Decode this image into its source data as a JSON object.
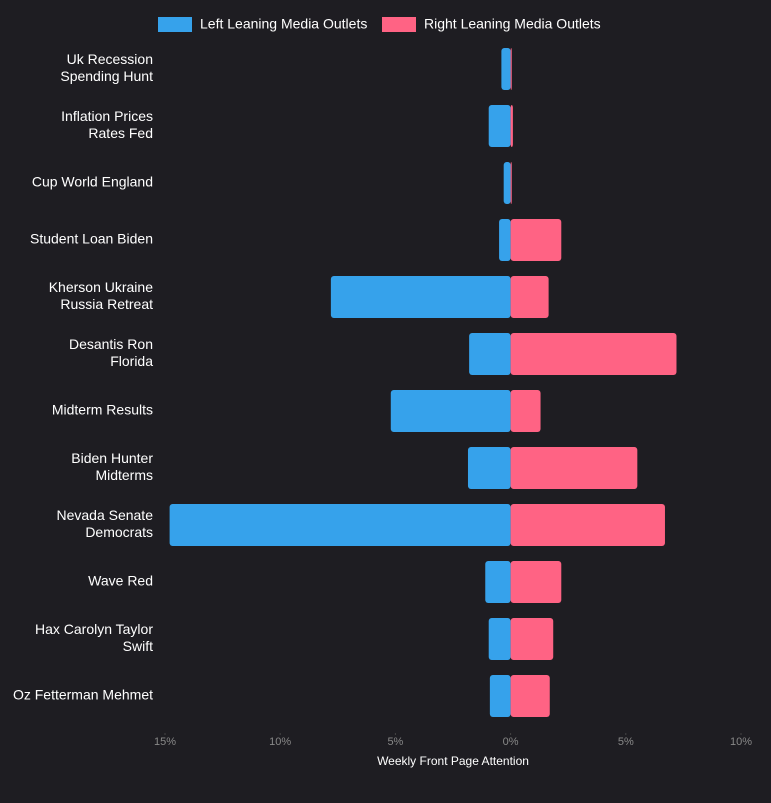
{
  "chart_data": {
    "type": "diverging-bar",
    "categories": [
      [
        "Uk Recession",
        "Spending Hunt"
      ],
      [
        "Inflation Prices",
        "Rates Fed"
      ],
      [
        "Cup World England"
      ],
      [
        "Student Loan Biden"
      ],
      [
        "Kherson Ukraine",
        "Russia Retreat"
      ],
      [
        "Desantis Ron",
        "Florida"
      ],
      [
        "Midterm Results"
      ],
      [
        "Biden Hunter",
        "Midterms"
      ],
      [
        "Nevada Senate",
        "Democrats"
      ],
      [
        "Wave Red"
      ],
      [
        "Hax Carolyn Taylor",
        "Swift"
      ],
      [
        "Oz Fetterman Mehmet"
      ]
    ],
    "series": [
      {
        "name": "Left Leaning Media Outlets",
        "color": "#36a2eb",
        "values": [
          -0.4,
          -0.95,
          -0.3,
          -0.5,
          -7.8,
          -1.8,
          -5.2,
          -1.85,
          -14.8,
          -1.1,
          -0.95,
          -0.9
        ]
      },
      {
        "name": "Right Leaning Media Outlets",
        "color": "#ff6384",
        "values": [
          0.05,
          0.1,
          0.05,
          2.2,
          1.65,
          7.2,
          1.3,
          5.5,
          6.7,
          2.2,
          1.85,
          1.7
        ]
      }
    ],
    "xlabel": "Weekly Front Page Attention",
    "xlim": [
      -15,
      10
    ],
    "xticks": [
      {
        "value": -15,
        "label": "15%"
      },
      {
        "value": -10,
        "label": "10%"
      },
      {
        "value": -5,
        "label": "5%"
      },
      {
        "value": 0,
        "label": "0%"
      },
      {
        "value": 5,
        "label": "5%"
      },
      {
        "value": 10,
        "label": "10%"
      }
    ],
    "grid": false,
    "legend": "top"
  }
}
